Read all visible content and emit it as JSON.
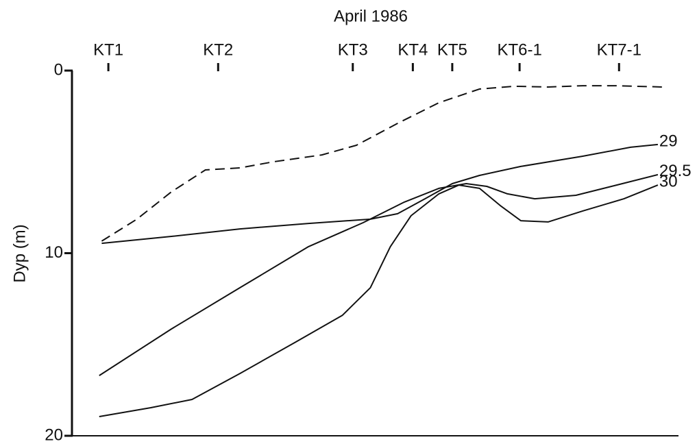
{
  "chart_data": {
    "type": "line",
    "title": "April 1986",
    "y_label": "Dyp (m)",
    "xlim": [
      0,
      100
    ],
    "xticks": [
      {
        "value": 6.0,
        "label": "KT1"
      },
      {
        "value": 24.1,
        "label": "KT2"
      },
      {
        "value": 46.3,
        "label": "KT3"
      },
      {
        "value": 56.2,
        "label": "KT4"
      },
      {
        "value": 62.7,
        "label": "KT5"
      },
      {
        "value": 73.8,
        "label": "KT6-1"
      },
      {
        "value": 90.2,
        "label": "KT7-1"
      }
    ],
    "ylim": [
      0,
      20
    ],
    "yticks": [
      0,
      10,
      20
    ],
    "y_inverted": true,
    "series": [
      {
        "color": "#111111",
        "dashed": true,
        "x": [
          4.9,
          10.7,
          16.4,
          22.0,
          27.7,
          33.3,
          41.2,
          46.9,
          53.7,
          60.5,
          67.2,
          72.9,
          78.5,
          84.2,
          89.8,
          97.5
        ],
        "values": [
          9.34,
          8.14,
          6.64,
          5.44,
          5.33,
          4.99,
          4.62,
          4.09,
          2.89,
          1.76,
          1.01,
          0.86,
          0.9,
          0.83,
          0.83,
          0.9
        ]
      },
      {
        "name": "29",
        "color": "#111111",
        "x": [
          4.9,
          16.4,
          27.7,
          39.0,
          49.2,
          53.7,
          58.2,
          62.7,
          67.2,
          74.0,
          84.2,
          92.1,
          96.6
        ],
        "values": [
          9.46,
          9.08,
          8.67,
          8.37,
          8.14,
          7.84,
          7.02,
          6.19,
          5.74,
          5.25,
          4.69,
          4.2,
          4.05
        ]
      },
      {
        "name": "29.5",
        "color": "#111111",
        "x": [
          4.5,
          16.4,
          27.7,
          39.0,
          48.0,
          54.8,
          60.5,
          65.0,
          68.4,
          71.8,
          76.3,
          83.1,
          89.8,
          96.6
        ],
        "values": [
          16.7,
          14.15,
          11.89,
          9.64,
          8.33,
          7.2,
          6.45,
          6.19,
          6.34,
          6.75,
          7.02,
          6.83,
          6.27,
          5.7
        ]
      },
      {
        "name": "30",
        "color": "#111111",
        "x": [
          4.5,
          13.0,
          19.8,
          27.7,
          36.7,
          44.6,
          49.2,
          52.5,
          55.9,
          60.5,
          63.8,
          67.2,
          70.6,
          74.0,
          78.5,
          84.2,
          91.0,
          96.6
        ],
        "values": [
          18.95,
          18.46,
          18.01,
          16.59,
          14.9,
          13.4,
          11.89,
          9.64,
          7.95,
          6.75,
          6.27,
          6.45,
          7.39,
          8.22,
          8.29,
          7.69,
          7.02,
          6.27
        ]
      }
    ]
  }
}
